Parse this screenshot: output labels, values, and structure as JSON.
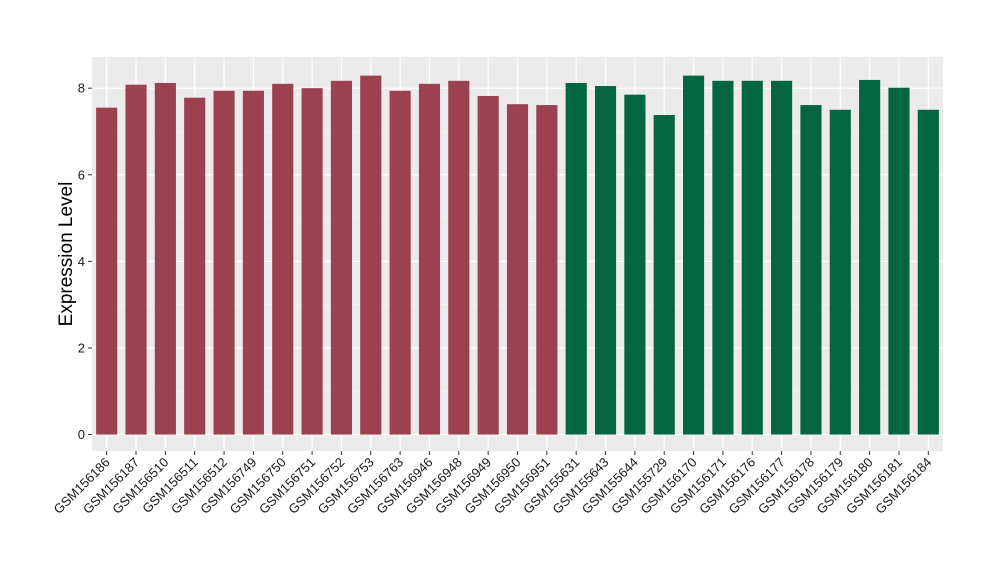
{
  "chart_data": {
    "type": "bar",
    "title": "",
    "xlabel": "",
    "ylabel": "Expression Level",
    "ylim": [
      -0.38,
      8.72
    ],
    "yticks": [
      0,
      2,
      4,
      6,
      8
    ],
    "grid": true,
    "legend": "none",
    "categories": [
      "GSM156186",
      "GSM156187",
      "GSM156510",
      "GSM156511",
      "GSM156512",
      "GSM156749",
      "GSM156750",
      "GSM156751",
      "GSM156752",
      "GSM156753",
      "GSM156763",
      "GSM156946",
      "GSM156948",
      "GSM156949",
      "GSM156950",
      "GSM156951",
      "GSM155631",
      "GSM155643",
      "GSM155644",
      "GSM155729",
      "GSM156170",
      "GSM156171",
      "GSM156176",
      "GSM156177",
      "GSM156178",
      "GSM156179",
      "GSM156180",
      "GSM156181",
      "GSM156184"
    ],
    "values": [
      7.55,
      8.08,
      8.12,
      7.78,
      7.94,
      7.94,
      8.1,
      8.0,
      8.17,
      8.29,
      7.94,
      8.1,
      8.17,
      7.82,
      7.63,
      7.61,
      8.12,
      8.05,
      7.85,
      7.38,
      8.29,
      8.17,
      8.17,
      8.17,
      7.61,
      7.5,
      8.19,
      8.01,
      7.5
    ],
    "groups": [
      0,
      0,
      0,
      0,
      0,
      0,
      0,
      0,
      0,
      0,
      0,
      0,
      0,
      0,
      0,
      0,
      1,
      1,
      1,
      1,
      1,
      1,
      1,
      1,
      1,
      1,
      1,
      1,
      1
    ],
    "colors": {
      "group_a": "#9b4150",
      "group_b": "#046640",
      "panel": "#ebebeb",
      "grid_major": "#ffffff",
      "grid_minor": "#f5f5f5"
    }
  }
}
